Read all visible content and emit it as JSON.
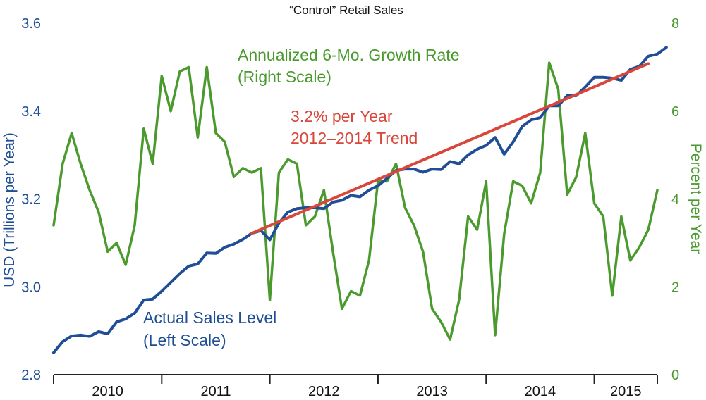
{
  "chart_data": {
    "type": "line",
    "title": "“Control” Retail Sales",
    "x_label": "",
    "left_axis": {
      "label": "USD (Trillions per Year)",
      "range": [
        2.8,
        3.6
      ],
      "ticks": [
        "2.8",
        "3.0",
        "3.2",
        "3.4",
        "3.6"
      ],
      "tick_values": [
        2.8,
        3.0,
        3.2,
        3.4,
        3.6
      ],
      "color": "#1f4e96"
    },
    "right_axis": {
      "label": "Percent per Year",
      "range": [
        0,
        8
      ],
      "ticks": [
        "0",
        "2",
        "4",
        "6",
        "8"
      ],
      "tick_values": [
        0,
        2,
        4,
        6,
        8
      ],
      "color": "#4a9a2e"
    },
    "x_axis": {
      "start_year": 2010,
      "end_year": 2015.5833,
      "year_labels": [
        "2010",
        "2011",
        "2012",
        "2013",
        "2014",
        "2015"
      ],
      "year_starts": [
        2010,
        2011,
        2012,
        2013,
        2014,
        2015
      ]
    },
    "series": [
      {
        "name": "Actual Sales Level",
        "axis": "left",
        "color": "#1f4e96",
        "start": 2010,
        "step_months": 1,
        "values": [
          2.85,
          2.875,
          2.888,
          2.89,
          2.887,
          2.898,
          2.893,
          2.92,
          2.927,
          2.94,
          2.97,
          2.972,
          2.99,
          3.01,
          3.03,
          3.047,
          3.052,
          3.077,
          3.076,
          3.09,
          3.097,
          3.108,
          3.122,
          3.128,
          3.107,
          3.145,
          3.17,
          3.178,
          3.18,
          3.18,
          3.178,
          3.193,
          3.197,
          3.208,
          3.205,
          3.22,
          3.23,
          3.247,
          3.265,
          3.268,
          3.268,
          3.261,
          3.268,
          3.267,
          3.285,
          3.28,
          3.3,
          3.313,
          3.322,
          3.34,
          3.302,
          3.33,
          3.365,
          3.38,
          3.385,
          3.412,
          3.412,
          3.435,
          3.435,
          3.455,
          3.477,
          3.477,
          3.475,
          3.47,
          3.495,
          3.502,
          3.525,
          3.53,
          3.545
        ]
      },
      {
        "name": "Annualized 6-Mo. Growth Rate",
        "axis": "right",
        "color": "#4a9a2e",
        "start": 2010,
        "step_months": 1,
        "values": [
          3.4,
          4.8,
          5.5,
          4.8,
          4.2,
          3.7,
          2.8,
          3.0,
          2.5,
          3.4,
          5.6,
          4.8,
          6.8,
          6.0,
          6.9,
          7.0,
          5.4,
          7.0,
          5.5,
          5.3,
          4.5,
          4.7,
          4.6,
          4.7,
          1.7,
          4.6,
          4.9,
          4.8,
          3.4,
          3.6,
          4.2,
          2.8,
          1.5,
          1.9,
          1.8,
          2.6,
          4.4,
          4.4,
          4.8,
          3.8,
          3.4,
          2.8,
          1.5,
          1.2,
          0.8,
          1.7,
          3.6,
          3.3,
          4.4,
          0.9,
          3.2,
          4.4,
          4.3,
          3.9,
          4.6,
          7.1,
          6.5,
          4.1,
          4.5,
          5.5,
          3.9,
          3.6,
          1.8,
          3.6,
          2.6,
          2.9,
          3.3,
          4.2
        ]
      },
      {
        "name": "3.2% per Year 2012–2014 Trend",
        "axis": "left",
        "color": "#d9473b",
        "points": [
          [
            2011.8333,
            3.122
          ],
          [
            2015.5,
            3.508
          ]
        ]
      }
    ]
  },
  "annotations": {
    "growth_line1": "Annualized 6-Mo. Growth Rate",
    "growth_line2": "(Right Scale)",
    "trend_line1": "3.2% per Year",
    "trend_line2": "2012–2014 Trend",
    "sales_line1": "Actual Sales Level",
    "sales_line2": "(Left Scale)"
  }
}
